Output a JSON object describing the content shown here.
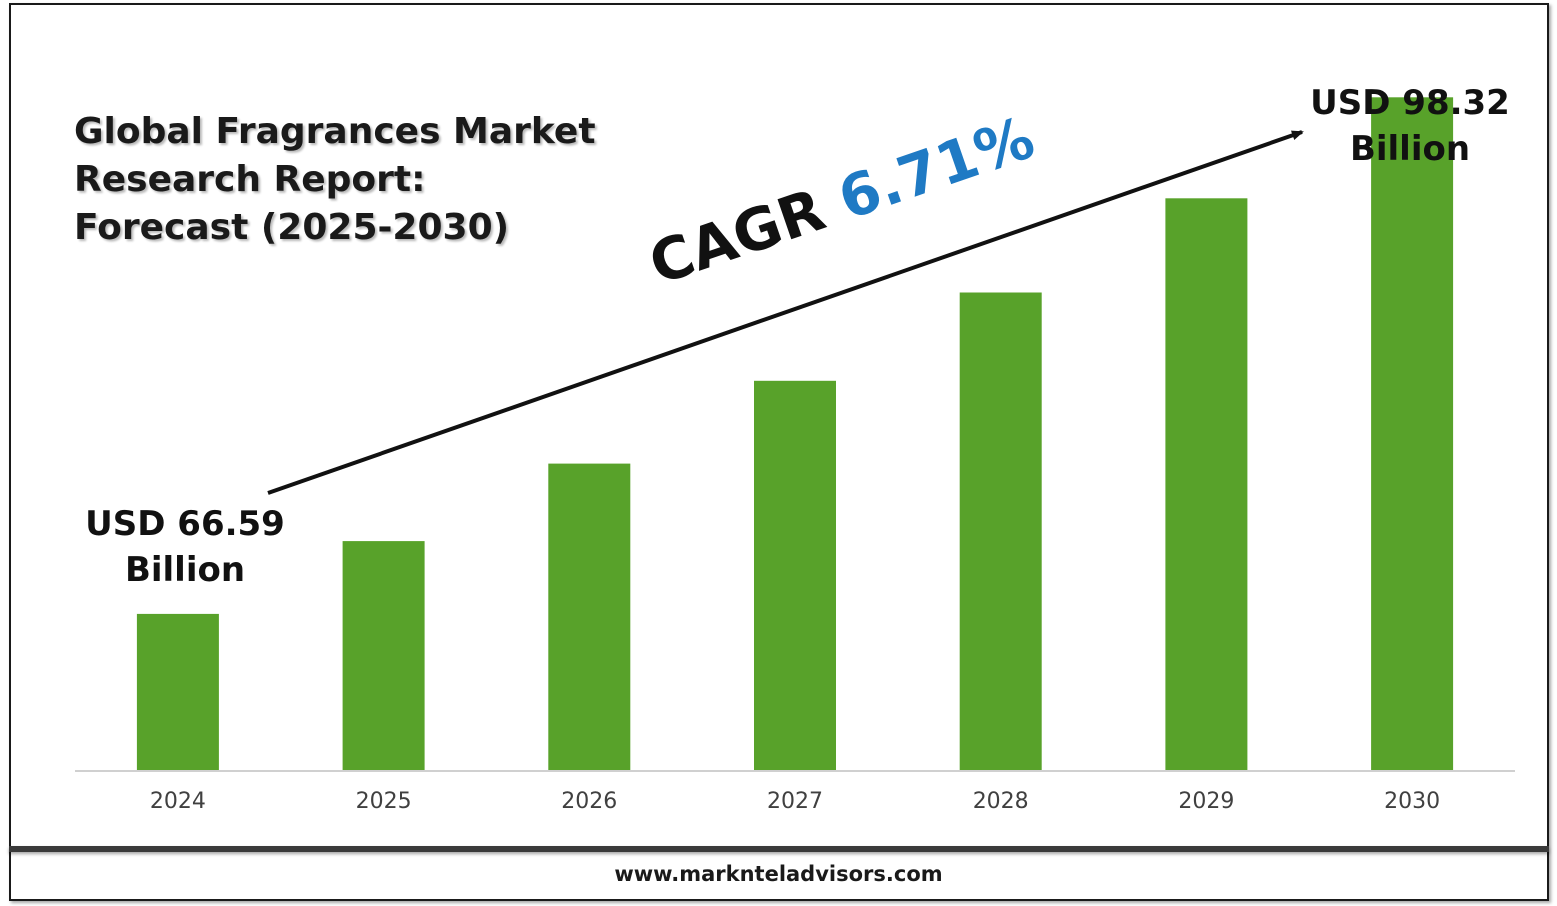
{
  "title_lines": [
    "Global Fragrances Market",
    "Research Report:",
    "Forecast (2025-2030)"
  ],
  "start_callout": {
    "line1": "USD 66.59",
    "line2": "Billion"
  },
  "end_callout": {
    "line1": "USD 98.32",
    "line2": "Billion"
  },
  "cagr": {
    "label": "CAGR",
    "value": "6.71%"
  },
  "footer": {
    "website": "www.marknteladvisors.com"
  },
  "colors": {
    "bar": "#58a22a",
    "cagr_value": "#1f7ac4",
    "text": "#1a1a1a",
    "axis": "#d0d0d0"
  },
  "chart_data": {
    "type": "bar",
    "categories": [
      "2024",
      "2025",
      "2026",
      "2027",
      "2028",
      "2029",
      "2030"
    ],
    "values": [
      66.59,
      71.06,
      75.82,
      80.91,
      86.33,
      92.12,
      98.32
    ],
    "unit": "USD Billion",
    "title": "Global Fragrances Market Research Report: Forecast (2025-2030)",
    "ylim": [
      57,
      100
    ],
    "grid": false,
    "legend": "none",
    "annotations": [
      "USD 66.59 Billion",
      "USD 98.32 Billion",
      "CAGR 6.71%"
    ]
  }
}
